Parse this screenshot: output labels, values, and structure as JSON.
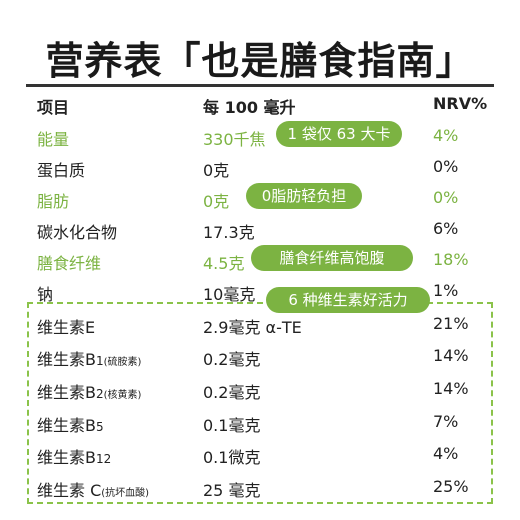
{
  "title": "营养表「也是膳食指南」",
  "header": {
    "item": "项目",
    "per100": "每 100 毫升",
    "nrv": "NRV%"
  },
  "rows": [
    {
      "name": "能量",
      "amount": "330千焦",
      "nrv": "4%",
      "tag": "1 袋仅 63 大卡"
    },
    {
      "name": "蛋白质",
      "amount": "0克",
      "nrv": "0%"
    },
    {
      "name": "脂肪",
      "amount": "0克",
      "nrv": "0%",
      "tag": "0脂肪轻负担"
    },
    {
      "name": "碳水化合物",
      "amount": "17.3克",
      "nrv": "6%"
    },
    {
      "name": "膳食纤维",
      "amount": "4.5克",
      "nrv": "18%",
      "tag": "膳食纤维高饱腹"
    },
    {
      "name": "钠",
      "amount": "10毫克",
      "nrv": "1%"
    }
  ],
  "vitamin_tag": "6 种维生素好活力",
  "vitamins": [
    {
      "name": "维生素E",
      "amount": "2.9毫克 α-TE",
      "nrv": "21%"
    },
    {
      "name": "维生素",
      "sub": "B",
      "subnum": "1",
      "note": "(硫胺素)",
      "amount": "0.2毫克",
      "nrv": "14%"
    },
    {
      "name": "维生素",
      "sub": "B",
      "subnum": "2",
      "note": "(核黄素)",
      "amount": "0.2毫克",
      "nrv": "14%"
    },
    {
      "name": "维生素",
      "sub": "B",
      "subnum": "5",
      "amount": "0.1毫克",
      "nrv": "7%"
    },
    {
      "name": "维生素",
      "sub": "B",
      "subnum": "12",
      "amount": "0.1微克",
      "nrv": "4%"
    },
    {
      "name": "维生素 C",
      "note": "(抗坏血酸)",
      "amount": "25 毫克",
      "nrv": "25%"
    }
  ],
  "colors": {
    "accent": "#7cb342",
    "dashed_border": "#8bc34a",
    "text": "#222222"
  }
}
